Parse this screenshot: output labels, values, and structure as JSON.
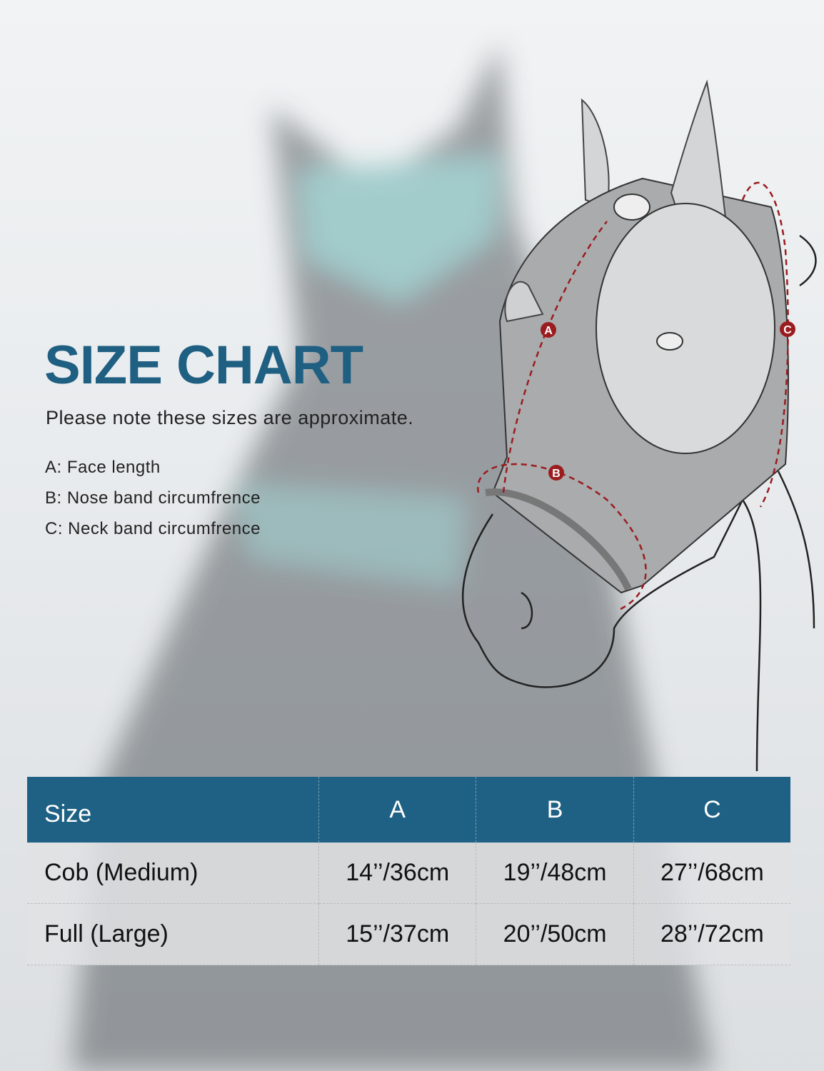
{
  "title": "SIZE CHART",
  "note": "Please note these sizes are approximate.",
  "legend": [
    "A: Face length",
    "B: Nose band circumfrence",
    "C: Neck band circumfrence"
  ],
  "diagram": {
    "markers": [
      "A",
      "B",
      "C"
    ],
    "arrow_color": "#9b1c1f",
    "mask_color": "#a9abad"
  },
  "table": {
    "headers": [
      "Size",
      "A",
      "B",
      "C"
    ],
    "rows": [
      [
        "Cob (Medium)",
        "14’’/36cm",
        "19’’/48cm",
        "27’’/68cm"
      ],
      [
        "Full (Large)",
        "15’’/37cm",
        "20’’/50cm",
        "28’’/72cm"
      ]
    ],
    "header_color": "#1f6184"
  },
  "colors": {
    "title": "#1f5f82"
  }
}
